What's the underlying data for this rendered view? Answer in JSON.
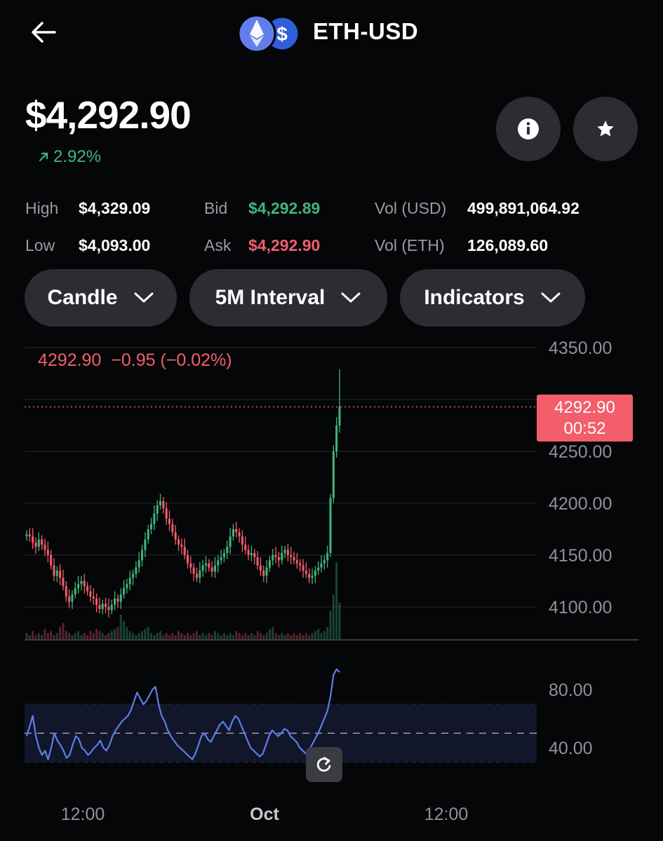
{
  "header": {
    "pair": "ETH-USD"
  },
  "price": {
    "current": "$4,292.90",
    "change": "2.92%",
    "change_direction": "up"
  },
  "stats": {
    "high_label": "High",
    "high_value": "$4,329.09",
    "low_label": "Low",
    "low_value": "$4,093.00",
    "bid_label": "Bid",
    "bid_value": "$4,292.89",
    "ask_label": "Ask",
    "ask_value": "$4,292.90",
    "vol_usd_label": "Vol (USD)",
    "vol_usd_value": "499,891,064.92",
    "vol_eth_label": "Vol (ETH)",
    "vol_eth_value": "126,089.60"
  },
  "controls": {
    "chart_type": "Candle",
    "interval": "5M Interval",
    "indicators": "Indicators"
  },
  "icons": {
    "back": "back-arrow-icon",
    "info": "info-icon",
    "star": "star-icon",
    "reset": "reset-icon",
    "eth": "eth-icon",
    "usd": "usd-icon"
  },
  "colors": {
    "up": "#3fb67a",
    "down": "#f25e6a",
    "rsi": "#5b7fe8",
    "background": "#050608",
    "button": "#2b2d33"
  },
  "chart_data": [
    {
      "type": "candlestick",
      "readout": {
        "last": "4292.90",
        "change": "−0.95",
        "change_pct": "(−0.02%)"
      },
      "current_price_tag": {
        "price": "4292.90",
        "countdown": "00:52"
      },
      "y_ticks": [
        "4350.00",
        "4250.00",
        "4200.00",
        "4150.00",
        "4100.00"
      ],
      "ylim": [
        4080,
        4358
      ],
      "x_ticks": [
        "12:00",
        "Oct",
        "12:00"
      ],
      "close": [
        4170,
        4168,
        4162,
        4158,
        4165,
        4160,
        4155,
        4150,
        4140,
        4130,
        4135,
        4128,
        4120,
        4110,
        4105,
        4112,
        4118,
        4122,
        4125,
        4120,
        4115,
        4110,
        4108,
        4102,
        4098,
        4103,
        4100,
        4097,
        4102,
        4108,
        4105,
        4112,
        4118,
        4122,
        4128,
        4132,
        4138,
        4145,
        4155,
        4165,
        4175,
        4180,
        4190,
        4198,
        4202,
        4195,
        4185,
        4180,
        4172,
        4165,
        4160,
        4158,
        4150,
        4142,
        4138,
        4132,
        4128,
        4135,
        4140,
        4142,
        4138,
        4134,
        4140,
        4145,
        4148,
        4152,
        4158,
        4168,
        4175,
        4172,
        4168,
        4160,
        4155,
        4150,
        4152,
        4148,
        4140,
        4135,
        4130,
        4138,
        4145,
        4150,
        4148,
        4145,
        4152,
        4155,
        4150,
        4148,
        4145,
        4142,
        4140,
        4135,
        4132,
        4128,
        4130,
        4135,
        4138,
        4142,
        4145,
        4152,
        4205,
        4250,
        4275,
        4292.9
      ],
      "volume": [
        3,
        2,
        4,
        2,
        3,
        2,
        5,
        3,
        4,
        2,
        3,
        6,
        8,
        4,
        3,
        2,
        3,
        4,
        2,
        3,
        2,
        4,
        3,
        5,
        4,
        3,
        2,
        3,
        4,
        5,
        6,
        12,
        9,
        6,
        4,
        3,
        2,
        3,
        4,
        5,
        6,
        3,
        2,
        3,
        4,
        2,
        3,
        2,
        3,
        2,
        4,
        3,
        2,
        3,
        2,
        3,
        4,
        2,
        3,
        2,
        3,
        2,
        4,
        3,
        2,
        3,
        2,
        3,
        2,
        4,
        3,
        2,
        3,
        2,
        3,
        2,
        4,
        3,
        2,
        3,
        5,
        6,
        3,
        2,
        3,
        2,
        3,
        2,
        3,
        2,
        3,
        2,
        3,
        2,
        3,
        4,
        5,
        3,
        4,
        6,
        14,
        22,
        38,
        18
      ],
      "volume_unit": "relative"
    },
    {
      "type": "line",
      "indicator": "RSI",
      "y_ticks": [
        "80.00",
        "40.00"
      ],
      "ylim": [
        25,
        102
      ],
      "band": [
        30,
        70
      ],
      "midline": 50,
      "values": [
        48,
        55,
        62,
        48,
        40,
        35,
        38,
        32,
        40,
        50,
        45,
        42,
        38,
        33,
        35,
        42,
        48,
        46,
        40,
        38,
        35,
        37,
        40,
        42,
        45,
        40,
        38,
        42,
        48,
        52,
        55,
        58,
        60,
        62,
        66,
        72,
        78,
        74,
        70,
        72,
        76,
        80,
        82,
        70,
        62,
        58,
        52,
        48,
        45,
        42,
        40,
        38,
        36,
        34,
        32,
        36,
        42,
        48,
        50,
        46,
        44,
        48,
        52,
        56,
        58,
        55,
        52,
        58,
        62,
        60,
        55,
        50,
        45,
        40,
        38,
        36,
        34,
        36,
        42,
        48,
        52,
        50,
        48,
        50,
        53,
        52,
        48,
        46,
        44,
        40,
        38,
        36,
        38,
        42,
        46,
        50,
        55,
        60,
        65,
        75,
        90,
        94,
        92
      ]
    }
  ]
}
